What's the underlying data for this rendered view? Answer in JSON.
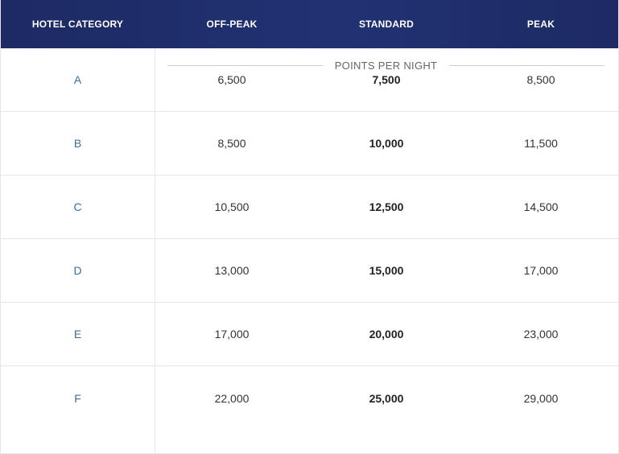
{
  "header": {
    "hotel_category": "HOTEL CATEGORY",
    "off_peak": "OFF-PEAK",
    "standard": "STANDARD",
    "peak": "PEAK"
  },
  "subheader": "POINTS PER NIGHT",
  "rows": [
    {
      "category": "A",
      "off_peak": "6,500",
      "standard": "7,500",
      "peak": "8,500"
    },
    {
      "category": "B",
      "off_peak": "8,500",
      "standard": "10,000",
      "peak": "11,500"
    },
    {
      "category": "C",
      "off_peak": "10,500",
      "standard": "12,500",
      "peak": "14,500"
    },
    {
      "category": "D",
      "off_peak": "13,000",
      "standard": "15,000",
      "peak": "17,000"
    },
    {
      "category": "E",
      "off_peak": "17,000",
      "standard": "20,000",
      "peak": "23,000"
    },
    {
      "category": "F",
      "off_peak": "22,000",
      "standard": "25,000",
      "peak": "29,000"
    }
  ],
  "colors": {
    "header_bg": "#213273",
    "category_text": "#3b6ea3"
  }
}
